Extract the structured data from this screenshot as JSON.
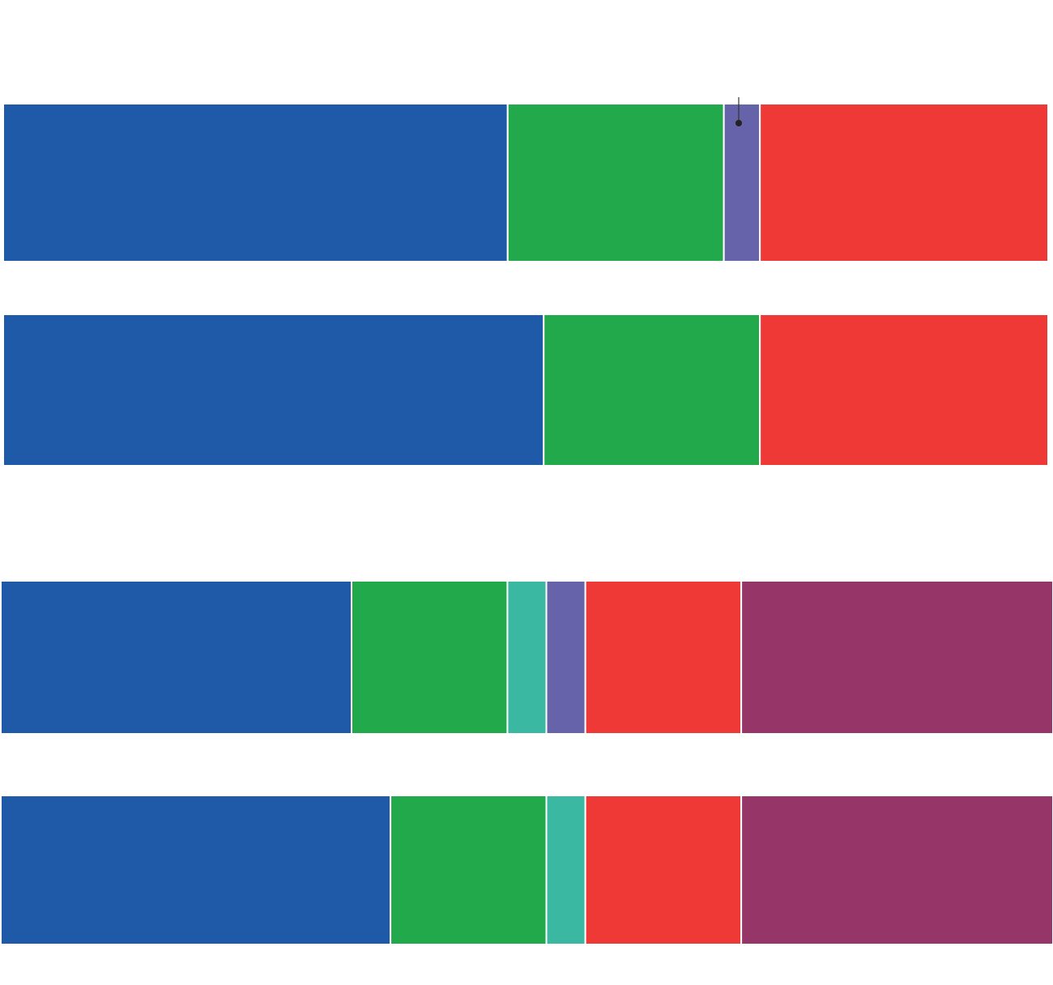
{
  "chart_data": [
    {
      "type": "stacked-bar",
      "orientation": "horizontal",
      "categories": [
        null,
        null
      ],
      "xlim": [
        0,
        29
      ],
      "series": [
        {
          "color": "#1f5aa8",
          "values": [
            14,
            15
          ]
        },
        {
          "color": "#21a94c",
          "values": [
            6,
            6
          ]
        },
        {
          "color": "#6763ab",
          "values": [
            1,
            null
          ]
        },
        {
          "color": "#ef3936",
          "values": [
            8,
            8
          ]
        }
      ]
    },
    {
      "type": "stacked-bar",
      "orientation": "horizontal",
      "categories": [
        null,
        null
      ],
      "xlim": [
        0,
        27
      ],
      "series": [
        {
          "color": "#1f5aa8",
          "values": [
            9,
            10
          ]
        },
        {
          "color": "#21a94c",
          "values": [
            4,
            4
          ]
        },
        {
          "color": "#3ab8a2",
          "values": [
            1,
            1
          ]
        },
        {
          "color": "#6763ab",
          "values": [
            1,
            null
          ]
        },
        {
          "color": "#ef3936",
          "values": [
            4,
            4
          ]
        },
        {
          "color": "#963668",
          "values": [
            8,
            8
          ]
        }
      ]
    }
  ]
}
